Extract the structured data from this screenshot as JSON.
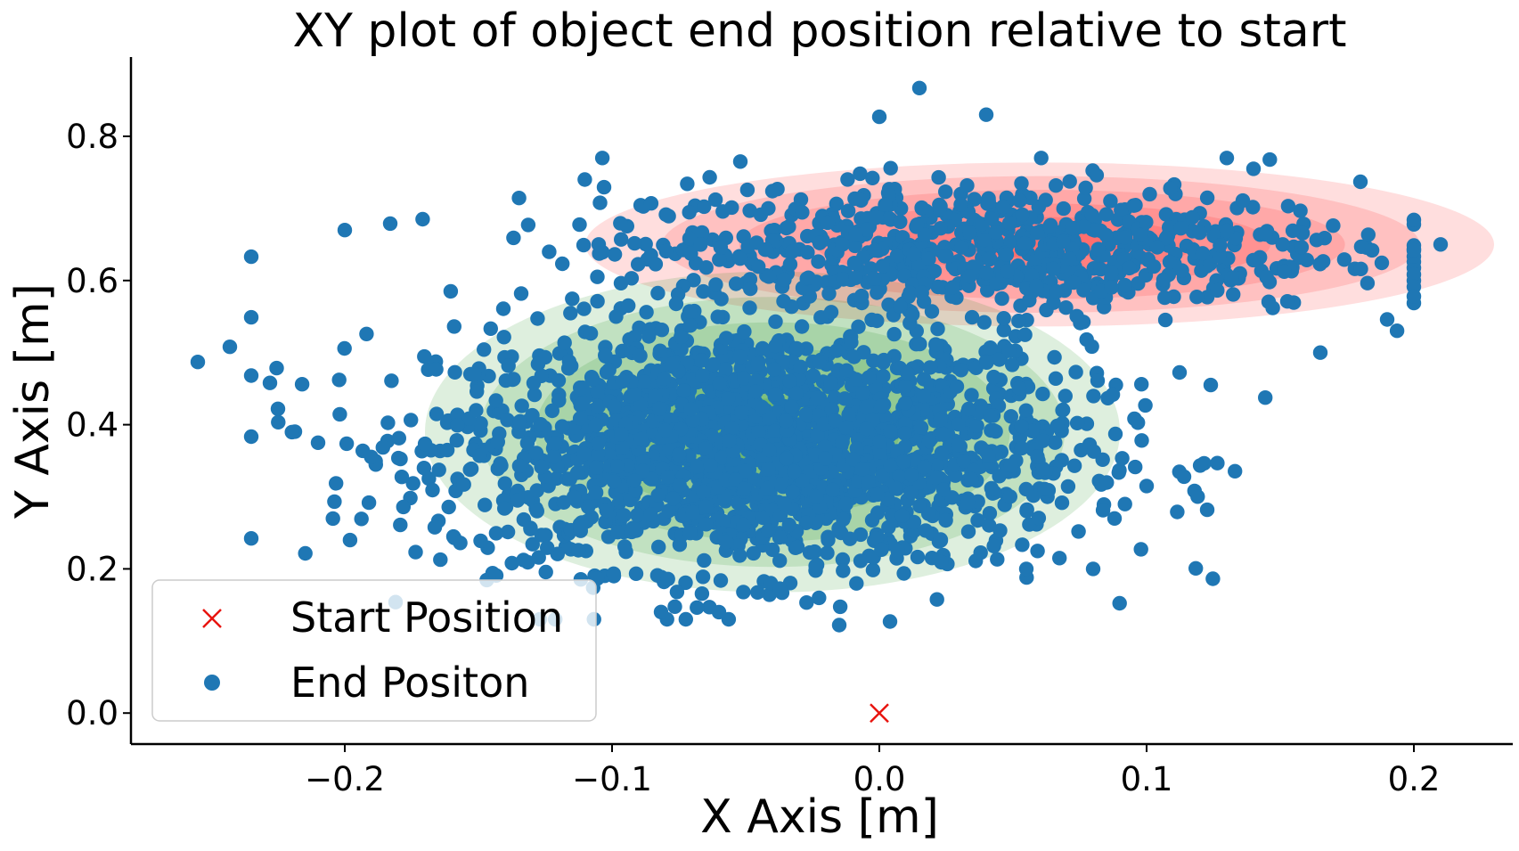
{
  "chart_data": {
    "type": "scatter",
    "title": "XY plot of object end position relative to start",
    "xlabel": "X Axis [m]",
    "ylabel": "Y Axis [m]",
    "xlim": [
      -0.28,
      0.237
    ],
    "ylim": [
      -0.043,
      0.91
    ],
    "x_ticks": [
      -0.2,
      -0.1,
      0.0,
      0.1,
      0.2
    ],
    "x_tick_labels": [
      "−0.2",
      "−0.1",
      "0.0",
      "0.1",
      "0.2"
    ],
    "y_ticks": [
      0.0,
      0.2,
      0.4,
      0.6,
      0.8
    ],
    "y_tick_labels": [
      "0.0",
      "0.2",
      "0.4",
      "0.6",
      "0.8"
    ],
    "grid": false,
    "legend_placement": "lower-left",
    "series": [
      {
        "name": "Start Position",
        "marker": "x",
        "color": "#e8140f",
        "points": [
          [
            0.0,
            0.0
          ]
        ]
      },
      {
        "name": "End Positon",
        "marker": "circle",
        "color": "#1f77b4",
        "clusters": [
          {
            "mean": [
              -0.045,
              0.37
            ],
            "std": [
              0.06,
              0.085
            ],
            "count": 1900
          },
          {
            "mean": [
              0.035,
              0.645
            ],
            "std": [
              0.07,
              0.045
            ],
            "count": 700
          }
        ],
        "outliers": [
          [
            -0.255,
            0.487
          ],
          [
            -0.243,
            0.508
          ],
          [
            -0.235,
            0.633
          ],
          [
            -0.228,
            0.458
          ],
          [
            -0.225,
            0.422
          ],
          [
            -0.21,
            0.375
          ],
          [
            -0.2,
            0.67
          ],
          [
            -0.183,
            0.679
          ],
          [
            0.0,
            0.827
          ],
          [
            0.015,
            0.867
          ],
          [
            0.04,
            0.83
          ],
          [
            -0.052,
            0.765
          ],
          [
            0.13,
            0.77
          ],
          [
            0.14,
            0.755
          ],
          [
            0.18,
            0.737
          ],
          [
            0.21,
            0.65
          ],
          [
            0.2,
            0.578
          ],
          [
            0.19,
            0.546
          ],
          [
            0.165,
            0.5
          ],
          [
            0.124,
            0.455
          ],
          [
            0.114,
            0.328
          ],
          [
            0.1,
            0.315
          ],
          [
            0.08,
            0.2
          ],
          [
            0.088,
            0.27
          ],
          [
            -0.06,
            0.14
          ],
          [
            -0.015,
            0.122
          ],
          [
            0.004,
            0.127
          ],
          [
            0.055,
            0.2
          ]
        ]
      }
    ],
    "density_regions": [
      {
        "color": "#ff0000",
        "center": [
          0.06,
          0.65
        ],
        "levels": 6
      },
      {
        "color": "#008000",
        "center": [
          -0.04,
          0.39
        ],
        "levels": 6
      }
    ]
  }
}
